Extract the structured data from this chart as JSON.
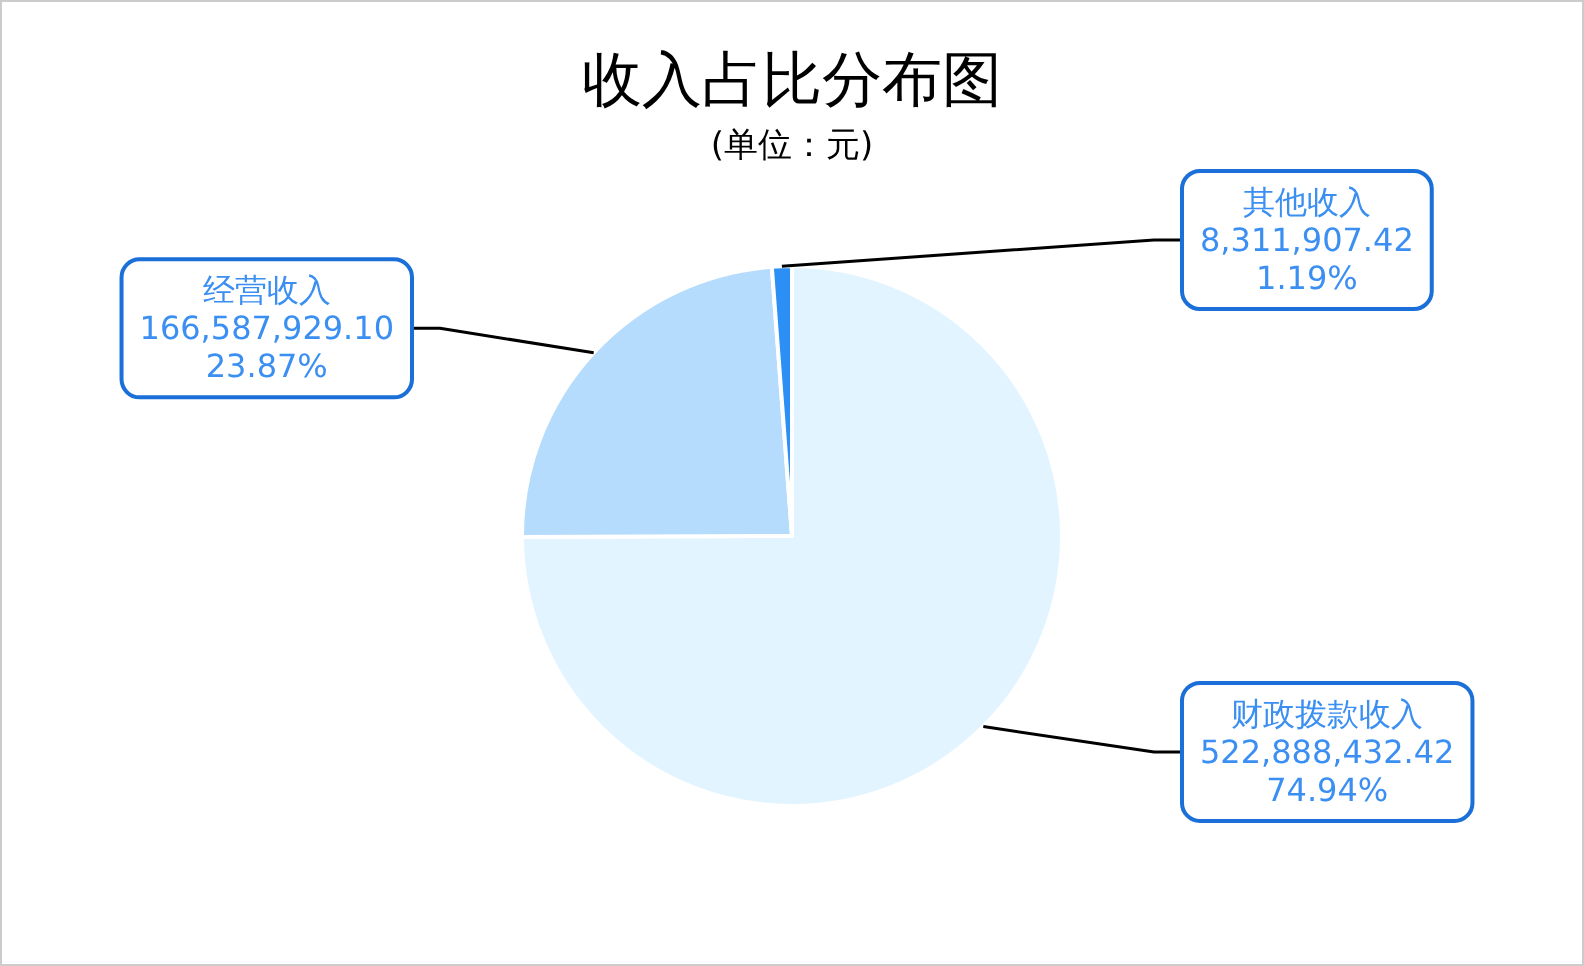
{
  "chart_data": {
    "type": "pie",
    "title": "收入占比分布图",
    "subtitle": "(单位：元)",
    "categories": [
      "财政拨款收入",
      "经营收入",
      "其他收入"
    ],
    "values": [
      522888432.42,
      166587929.1,
      8311907.42
    ],
    "colors": [
      "#e1f4ff",
      "#b5dcfd",
      "#2b8ff5"
    ],
    "value_labels": [
      "522,888,432.42\n74.94%",
      "166,587,929.10\n23.87%",
      "8,311,907.42\n1.19%"
    ]
  }
}
